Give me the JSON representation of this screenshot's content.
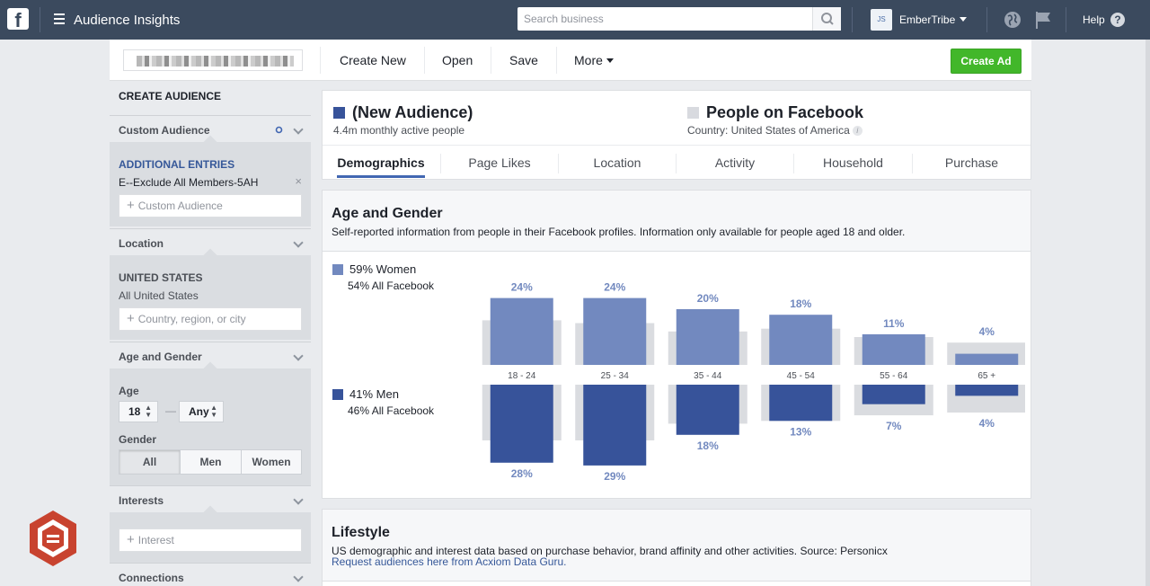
{
  "topbar": {
    "logo_letter": "f",
    "app_title": "Audience Insights",
    "search_placeholder": "Search business",
    "avatar_initials": "JS",
    "account_name": "EmberTribe",
    "help_label": "Help",
    "help_icon_glyph": "?"
  },
  "toolbar": {
    "create_new": "Create New",
    "open": "Open",
    "save": "Save",
    "more": "More",
    "create_ad": "Create Ad"
  },
  "left_panel": {
    "header": "CREATE AUDIENCE",
    "custom_audience": {
      "title": "Custom Audience",
      "entries_title": "ADDITIONAL ENTRIES",
      "entry": "E--Exclude All Members-5AH",
      "remove_glyph": "×",
      "input_placeholder": "Custom Audience"
    },
    "location": {
      "title": "Location",
      "country": "UNITED STATES",
      "country_scope": "All United States",
      "input_placeholder": "Country, region, or city"
    },
    "age_gender": {
      "title": "Age and Gender",
      "age_label": "Age",
      "age_min": "18",
      "age_dash": "—",
      "age_max": "Any",
      "gender_label": "Gender",
      "gender_options": [
        "All",
        "Men",
        "Women"
      ],
      "gender_selected": "All"
    },
    "interests": {
      "title": "Interests",
      "input_placeholder": "Interest"
    },
    "connections": {
      "title": "Connections"
    }
  },
  "audience_header": {
    "left_title": "(New Audience)",
    "left_sub": "4.4m monthly active people",
    "right_title": "People on Facebook",
    "right_sub": "Country: United States of America",
    "info_glyph": "i",
    "tabs": [
      "Demographics",
      "Page Likes",
      "Location",
      "Activity",
      "Household",
      "Purchase"
    ],
    "active_tab": "Demographics"
  },
  "age_gender_card": {
    "title": "Age and Gender",
    "description": "Self-reported information from people in their Facebook profiles. Information only available for people aged 18 and older.",
    "women_label": "59% Women",
    "women_all": "54% All Facebook",
    "men_label": "41% Men",
    "men_all": "46% All Facebook"
  },
  "chart_data": {
    "type": "bar",
    "categories": [
      "18 - 24",
      "25 - 34",
      "35 - 44",
      "45 - 54",
      "55 - 64",
      "65 +"
    ],
    "series": [
      {
        "name": "59% Women",
        "values": [
          24,
          24,
          20,
          18,
          11,
          4
        ]
      },
      {
        "name": "41% Men",
        "values": [
          28,
          29,
          18,
          13,
          7,
          4
        ]
      }
    ],
    "benchmark_women": [
      16,
      15,
      12,
      13,
      10,
      8
    ],
    "benchmark_men": [
      20,
      20,
      14,
      13,
      11,
      10
    ],
    "value_suffix": "%",
    "colors": {
      "women": "#7289bf",
      "men": "#37539a",
      "benchmark": "#dadce0"
    }
  },
  "lifestyle_card": {
    "title": "Lifestyle",
    "description": "US demographic and interest data based on purchase behavior, brand affinity and other activities. Source: Personicx",
    "link": "Request audiences here from Acxiom Data Guru."
  },
  "colors": {
    "topbar": "#3b4a5e",
    "new_audience": "#37539a",
    "people_on_facebook": "#d8dadf",
    "tab_active": "#4267b2",
    "create_ad": "#42b72a",
    "link": "#365899"
  }
}
